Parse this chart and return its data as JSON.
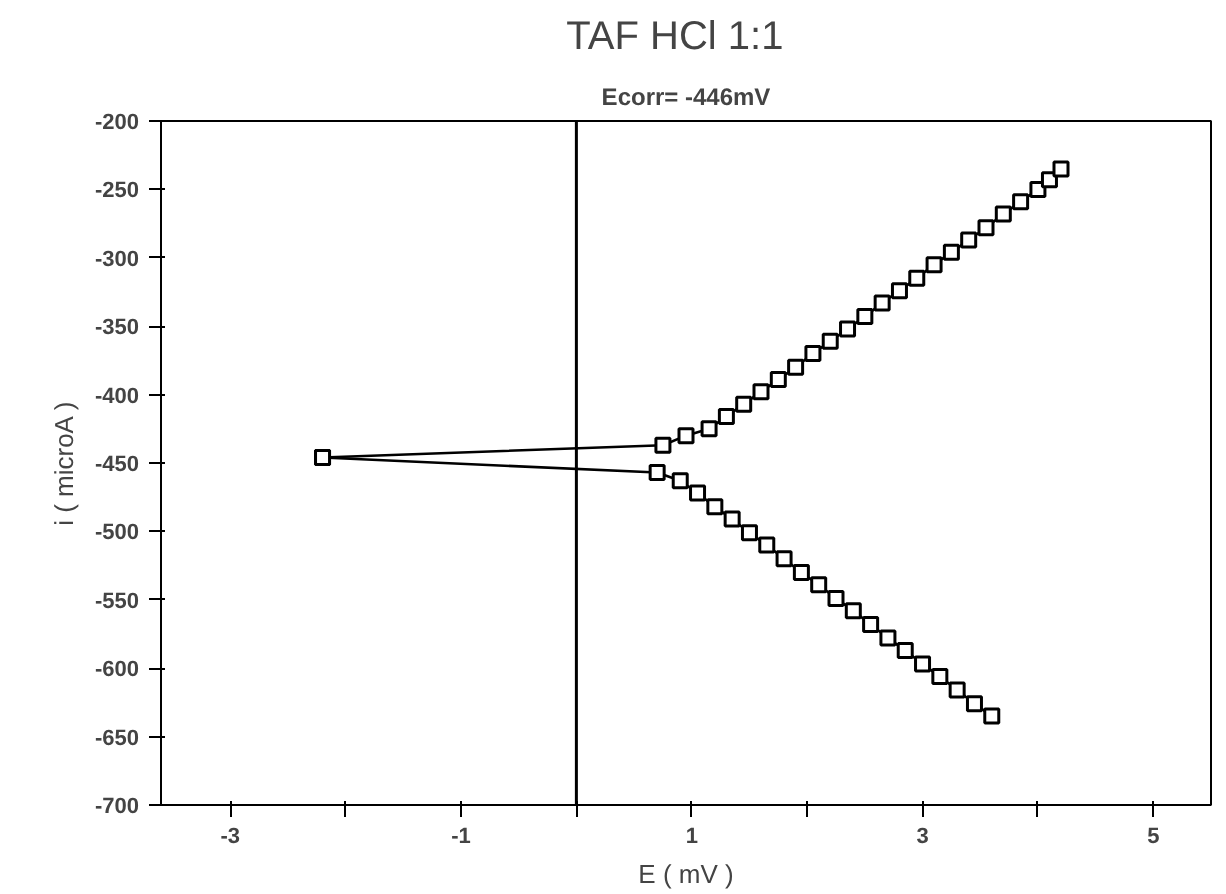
{
  "chart_data": {
    "type": "line",
    "title": "TAF  HCl  1:1",
    "subtitle": "Ecorr= -446mV",
    "xlabel": "E ( mV )",
    "ylabel": "i ( microA )",
    "series": [
      {
        "color": "#000000",
        "x": [
          -2.2,
          0.75,
          0.95,
          1.15,
          1.3,
          1.45,
          1.6,
          1.75,
          1.9,
          2.05,
          2.2,
          2.35,
          2.5,
          2.65,
          2.8,
          2.95,
          3.1,
          3.25,
          3.4,
          3.55,
          3.7,
          3.85,
          4.0,
          4.1,
          4.2
        ],
        "values": [
          -446,
          -437,
          -430,
          -425,
          -416,
          -407,
          -398,
          -389,
          -380,
          -370,
          -361,
          -352,
          -343,
          -333,
          -324,
          -315,
          -305,
          -296,
          -287,
          -278,
          -268,
          -259,
          -250,
          -243,
          -235
        ]
      },
      {
        "color": "#000000",
        "x": [
          -2.2,
          0.7,
          0.9,
          1.05,
          1.2,
          1.35,
          1.5,
          1.65,
          1.8,
          1.95,
          2.1,
          2.25,
          2.4,
          2.55,
          2.7,
          2.85,
          3.0,
          3.15,
          3.3,
          3.45,
          3.6
        ],
        "values": [
          -446,
          -457,
          -463,
          -472,
          -482,
          -491,
          -501,
          -510,
          -520,
          -530,
          -539,
          -549,
          -558,
          -568,
          -578,
          -587,
          -597,
          -606,
          -616,
          -626,
          -635
        ]
      }
    ],
    "xlim": [
      -3.6,
      5.5
    ],
    "ylim": [
      -700,
      -200
    ],
    "xticks": [
      -3,
      {
        "value": -2,
        "label": null
      },
      -1,
      {
        "value": 0,
        "label": null
      },
      1,
      {
        "value": 2,
        "label": null
      },
      3,
      {
        "value": 4,
        "label": null
      },
      5
    ],
    "yticks": [
      -700,
      -650,
      -600,
      -550,
      -500,
      -450,
      -400,
      -350,
      -300,
      -250,
      -200
    ],
    "ref_lines": [
      {
        "axis": "x",
        "value": 0,
        "label": null,
        "color": "#000000"
      }
    ],
    "marker": "square",
    "line_style": "solid",
    "grid": false
  }
}
